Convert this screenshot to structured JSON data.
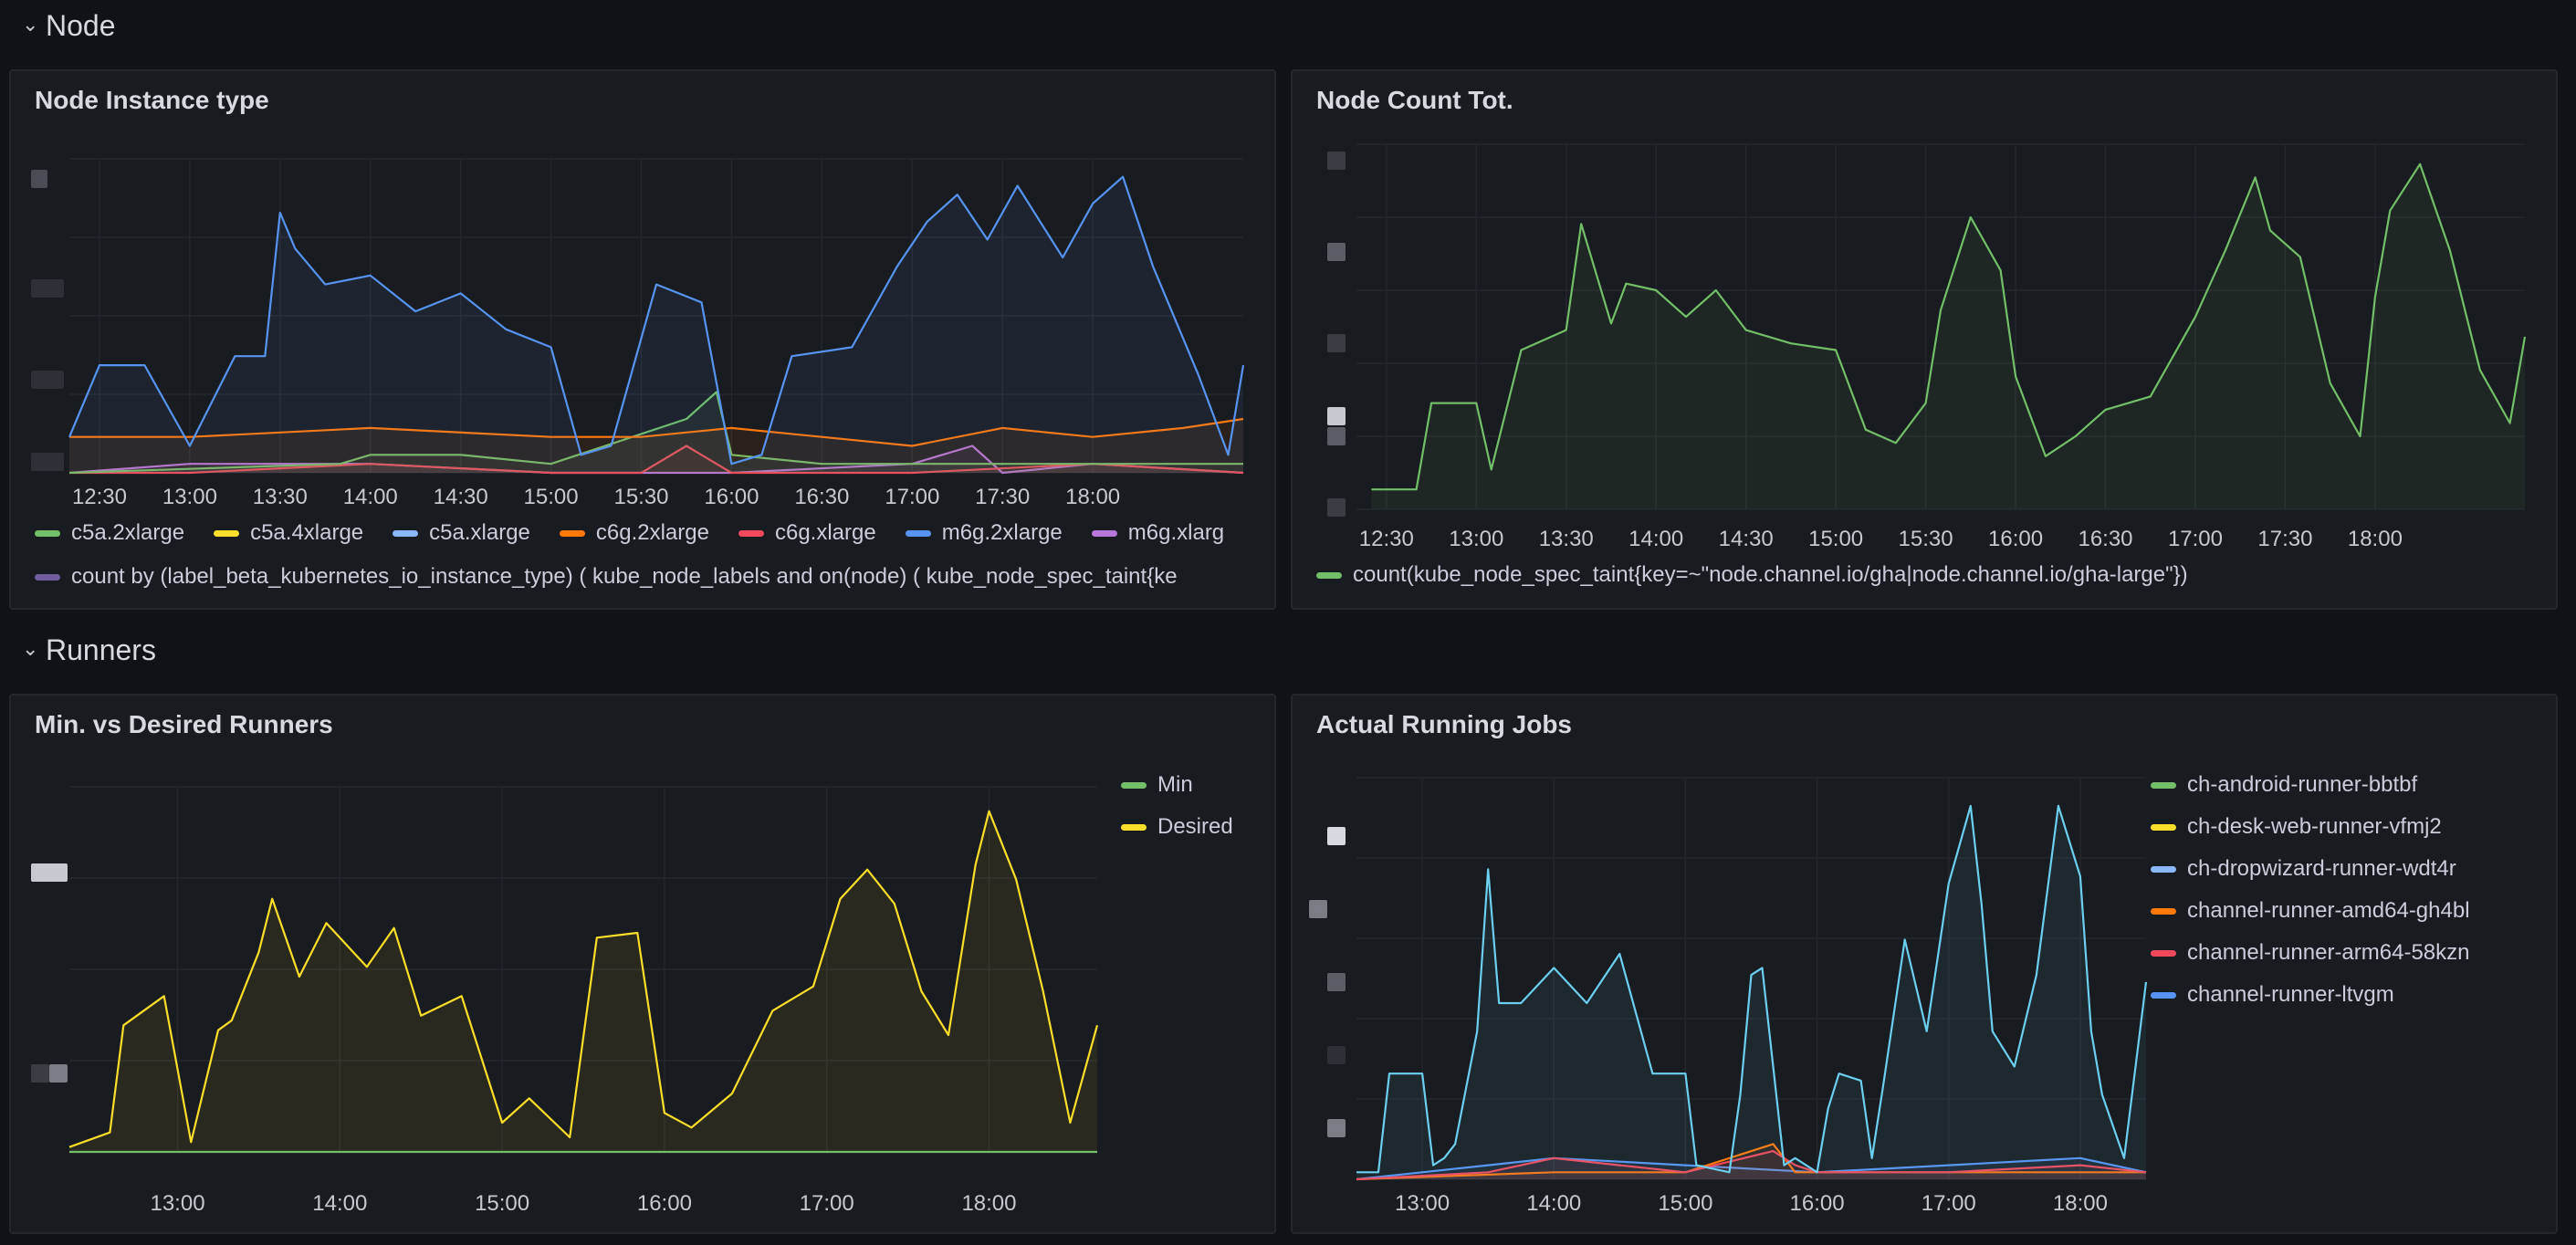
{
  "rows": [
    {
      "title": "Node"
    },
    {
      "title": "Runners"
    }
  ],
  "colors": {
    "green": "#73bf69",
    "yellow": "#fade2a",
    "lightblue": "#8ab8ff",
    "orange": "#ff780a",
    "red": "#f2495c",
    "blue": "#5794f2",
    "purple": "#b877d9",
    "darkpurple": "#705da0",
    "cyan": "#6ccfef"
  },
  "panels": {
    "instance_type": {
      "title": "Node Instance type",
      "legend_row1": [
        "c5a.2xlarge",
        "c5a.4xlarge",
        "c5a.xlarge",
        "c6g.2xlarge",
        "c6g.xlarge",
        "m6g.2xlarge",
        "m6g.xlarg"
      ],
      "legend_row2": "count by (label_beta_kubernetes_io_instance_type) ( kube_node_labels and on(node) ( kube_node_spec_taint{ke"
    },
    "node_count": {
      "title": "Node Count Tot.",
      "legend": "count(kube_node_spec_taint{key=~\"node.channel.io/gha|node.channel.io/gha-large\"})"
    },
    "min_desired": {
      "title": "Min. vs Desired Runners",
      "legend": [
        "Min",
        "Desired"
      ]
    },
    "running_jobs": {
      "title": "Actual Running Jobs",
      "legend": [
        "ch-android-runner-bbtbf",
        "ch-desk-web-runner-vfmj2",
        "ch-dropwizard-runner-wdt4r",
        "channel-runner-amd64-gh4bl",
        "channel-runner-arm64-58kzn",
        "channel-runner-ltvgm"
      ]
    }
  },
  "chart_data": [
    {
      "type": "line",
      "panel": "Node Instance type",
      "x_ticks": [
        "12:30",
        "13:00",
        "13:30",
        "14:00",
        "14:30",
        "15:00",
        "15:30",
        "16:00",
        "16:30",
        "17:00",
        "17:30",
        "18:00"
      ],
      "x_range": [
        "12:20",
        "18:50"
      ],
      "series": [
        {
          "name": "m6g.2xlarge",
          "color": "#5794f2",
          "x": [
            "12:20",
            "12:30",
            "12:45",
            "13:00",
            "13:15",
            "13:25",
            "13:30",
            "13:35",
            "13:45",
            "14:00",
            "14:15",
            "14:30",
            "14:45",
            "15:00",
            "15:10",
            "15:20",
            "15:35",
            "15:50",
            "16:00",
            "16:10",
            "16:20",
            "16:40",
            "16:55",
            "17:05",
            "17:15",
            "17:25",
            "17:35",
            "17:50",
            "18:00",
            "18:10",
            "18:20",
            "18:35",
            "18:45",
            "18:50"
          ],
          "y": [
            0.4,
            1.2,
            1.2,
            0.3,
            1.3,
            1.3,
            2.9,
            2.5,
            2.1,
            2.2,
            1.8,
            2.0,
            1.6,
            1.4,
            0.2,
            0.3,
            2.1,
            1.9,
            0.1,
            0.2,
            1.3,
            1.4,
            2.3,
            2.8,
            3.1,
            2.6,
            3.2,
            2.4,
            3.0,
            3.3,
            2.3,
            1.1,
            0.2,
            1.2
          ]
        },
        {
          "name": "c6g.2xlarge",
          "color": "#ff780a",
          "x": [
            "12:20",
            "13:00",
            "14:00",
            "15:00",
            "15:30",
            "16:00",
            "16:30",
            "17:00",
            "17:30",
            "18:00",
            "18:30",
            "18:50"
          ],
          "y": [
            0.4,
            0.4,
            0.5,
            0.4,
            0.4,
            0.5,
            0.4,
            0.3,
            0.5,
            0.4,
            0.5,
            0.6
          ]
        },
        {
          "name": "c5a.2xlarge",
          "color": "#73bf69",
          "x": [
            "12:20",
            "13:50",
            "14:00",
            "14:30",
            "15:00",
            "15:45",
            "15:55",
            "16:00",
            "16:30",
            "17:00",
            "18:50"
          ],
          "y": [
            0.0,
            0.1,
            0.2,
            0.2,
            0.1,
            0.6,
            0.9,
            0.2,
            0.1,
            0.1,
            0.1
          ]
        },
        {
          "name": "c6g.xlarge",
          "color": "#f2495c",
          "x": [
            "12:20",
            "13:00",
            "14:00",
            "15:00",
            "15:30",
            "15:45",
            "16:00",
            "17:00",
            "18:00",
            "18:50"
          ],
          "y": [
            0.0,
            0.0,
            0.1,
            0.0,
            0.0,
            0.3,
            0.0,
            0.0,
            0.1,
            0.0
          ]
        },
        {
          "name": "m6g.xlarge",
          "color": "#b877d9",
          "x": [
            "12:20",
            "13:00",
            "14:00",
            "15:00",
            "16:00",
            "17:00",
            "17:20",
            "17:30",
            "18:00",
            "18:50"
          ],
          "y": [
            0.0,
            0.1,
            0.1,
            0.0,
            0.0,
            0.1,
            0.3,
            0.0,
            0.1,
            0.0
          ]
        }
      ]
    },
    {
      "type": "line",
      "panel": "Node Count Tot.",
      "x_ticks": [
        "12:30",
        "13:00",
        "13:30",
        "14:00",
        "14:30",
        "15:00",
        "15:30",
        "16:00",
        "16:30",
        "17:00",
        "17:30",
        "18:00"
      ],
      "x_range": [
        "12:20",
        "18:50"
      ],
      "series": [
        {
          "name": "count(kube_node_spec_taint{key=~\"node.channel.io/gha|node.channel.io/gha-large\"})",
          "color": "#73bf69",
          "x": [
            "12:25",
            "12:40",
            "12:45",
            "13:00",
            "13:05",
            "13:15",
            "13:30",
            "13:35",
            "13:45",
            "13:50",
            "14:00",
            "14:10",
            "14:20",
            "14:30",
            "14:45",
            "15:00",
            "15:10",
            "15:20",
            "15:30",
            "15:35",
            "15:45",
            "15:55",
            "16:00",
            "16:10",
            "16:20",
            "16:30",
            "16:45",
            "17:00",
            "17:10",
            "17:20",
            "17:25",
            "17:35",
            "17:45",
            "17:55",
            "18:00",
            "18:05",
            "18:15",
            "18:25",
            "18:35",
            "18:45",
            "18:50"
          ],
          "y": [
            0.3,
            0.3,
            1.6,
            1.6,
            0.6,
            2.4,
            2.7,
            4.3,
            2.8,
            3.4,
            3.3,
            2.9,
            3.3,
            2.7,
            2.5,
            2.4,
            1.2,
            1.0,
            1.6,
            3.0,
            4.4,
            3.6,
            2.0,
            0.8,
            1.1,
            1.5,
            1.7,
            2.9,
            3.9,
            5.0,
            4.2,
            3.8,
            1.9,
            1.1,
            3.2,
            4.5,
            5.2,
            3.9,
            2.1,
            1.3,
            2.6
          ]
        }
      ]
    },
    {
      "type": "line",
      "panel": "Min. vs Desired Runners",
      "x_ticks": [
        "13:00",
        "14:00",
        "15:00",
        "16:00",
        "17:00",
        "18:00"
      ],
      "x_range": [
        "12:20",
        "18:40"
      ],
      "series": [
        {
          "name": "Min",
          "color": "#73bf69",
          "x": [
            "12:20",
            "18:40"
          ],
          "y": [
            0,
            0
          ]
        },
        {
          "name": "Desired",
          "color": "#fade2a",
          "x": [
            "12:20",
            "12:35",
            "12:40",
            "12:55",
            "13:05",
            "13:15",
            "13:20",
            "13:30",
            "13:35",
            "13:45",
            "13:55",
            "14:10",
            "14:20",
            "14:30",
            "14:45",
            "15:00",
            "15:10",
            "15:25",
            "15:35",
            "15:50",
            "16:00",
            "16:10",
            "16:25",
            "16:40",
            "16:55",
            "17:05",
            "17:15",
            "17:25",
            "17:35",
            "17:45",
            "17:55",
            "18:00",
            "18:10",
            "18:20",
            "18:30",
            "18:40"
          ],
          "y": [
            0.1,
            0.4,
            2.6,
            3.2,
            0.2,
            2.5,
            2.7,
            4.1,
            5.2,
            3.6,
            4.7,
            3.8,
            4.6,
            2.8,
            3.2,
            0.6,
            1.1,
            0.3,
            4.4,
            4.5,
            0.8,
            0.5,
            1.2,
            2.9,
            3.4,
            5.2,
            5.8,
            5.1,
            3.3,
            2.4,
            5.9,
            7.0,
            5.6,
            3.3,
            0.6,
            2.6
          ]
        }
      ]
    },
    {
      "type": "line",
      "panel": "Actual Running Jobs",
      "x_ticks": [
        "13:00",
        "14:00",
        "15:00",
        "16:00",
        "17:00",
        "18:00"
      ],
      "x_range": [
        "12:30",
        "18:30"
      ],
      "series": [
        {
          "name": "ch-dropwizard-runner-wdt4r",
          "color": "#6ccfef",
          "x": [
            "12:30",
            "12:40",
            "12:45",
            "13:00",
            "13:05",
            "13:10",
            "13:15",
            "13:25",
            "13:30",
            "13:35",
            "13:45",
            "14:00",
            "14:15",
            "14:30",
            "14:45",
            "15:00",
            "15:05",
            "15:20",
            "15:25",
            "15:30",
            "15:35",
            "15:45",
            "15:50",
            "16:00",
            "16:05",
            "16:10",
            "16:20",
            "16:25",
            "16:30",
            "16:40",
            "16:50",
            "17:00",
            "17:10",
            "17:15",
            "17:20",
            "17:30",
            "17:40",
            "17:50",
            "18:00",
            "18:05",
            "18:10",
            "18:20",
            "18:30"
          ],
          "y": [
            0.1,
            0.1,
            1.5,
            1.5,
            0.2,
            0.3,
            0.5,
            2.1,
            4.4,
            2.5,
            2.5,
            3.0,
            2.5,
            3.2,
            1.5,
            1.5,
            0.2,
            0.1,
            1.2,
            2.9,
            3.0,
            0.2,
            0.3,
            0.1,
            1.0,
            1.5,
            1.4,
            0.3,
            1.3,
            3.4,
            2.1,
            4.2,
            5.3,
            3.9,
            2.1,
            1.6,
            2.9,
            5.3,
            4.3,
            2.1,
            1.2,
            0.3,
            2.8
          ]
        },
        {
          "name": "channel-runner-arm64-58kzn",
          "color": "#f2495c",
          "x": [
            "12:30",
            "13:30",
            "14:00",
            "14:30",
            "15:00",
            "15:40",
            "15:50",
            "16:00",
            "17:00",
            "18:00",
            "18:30"
          ],
          "y": [
            0,
            0.1,
            0.3,
            0.2,
            0.1,
            0.4,
            0.2,
            0.1,
            0.1,
            0.2,
            0.1
          ]
        },
        {
          "name": "channel-runner-amd64-gh4bl",
          "color": "#ff780a",
          "x": [
            "12:30",
            "14:00",
            "15:00",
            "15:40",
            "15:45",
            "15:50",
            "16:00",
            "17:00",
            "18:30"
          ],
          "y": [
            0,
            0.1,
            0.1,
            0.5,
            0.3,
            0.1,
            0.1,
            0.1,
            0.1
          ]
        },
        {
          "name": "channel-runner-ltvgm",
          "color": "#5794f2",
          "x": [
            "12:30",
            "13:30",
            "14:00",
            "15:00",
            "16:00",
            "17:00",
            "18:00",
            "18:30"
          ],
          "y": [
            0,
            0.2,
            0.3,
            0.2,
            0.1,
            0.2,
            0.3,
            0.1
          ]
        }
      ]
    }
  ]
}
